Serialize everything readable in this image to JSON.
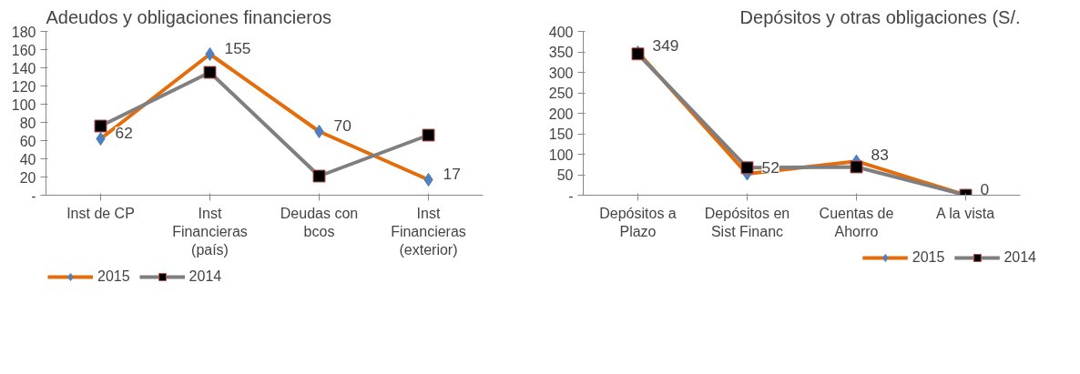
{
  "chart_data": [
    {
      "type": "line",
      "title": "Adeudos y obligaciones financieros",
      "categories": [
        "Inst de CP",
        "Inst Financieras (país)",
        "Deudas con bcos",
        "Inst Financieras (exterior)"
      ],
      "series": [
        {
          "name": "2015",
          "color": "#e46c0a",
          "marker": "diamond",
          "values": [
            62,
            155,
            70,
            17
          ],
          "value_labels": [
            "62",
            "155",
            "70",
            "17"
          ]
        },
        {
          "name": "2014",
          "color": "#7f7f7f",
          "marker": "square",
          "values": [
            76,
            135,
            21,
            66
          ]
        }
      ],
      "ylim": [
        0,
        180
      ],
      "yticks": [
        {
          "value": 0,
          "label": "-"
        },
        20,
        40,
        60,
        80,
        100,
        120,
        140,
        160,
        180
      ],
      "grid": false,
      "legend": "bottom left"
    },
    {
      "type": "line",
      "title": "Depósitos y otras obligaciones (S/.",
      "categories": [
        "Depósitos a Plazo",
        "Depósitos en Sist Financ",
        "Cuentas de Ahorro",
        "A la vista"
      ],
      "series": [
        {
          "name": "2015",
          "color": "#e46c0a",
          "marker": "diamond",
          "values": [
            349,
            52,
            83,
            0
          ],
          "value_labels": [
            "349",
            "52",
            "83",
            "0"
          ]
        },
        {
          "name": "2014",
          "color": "#7f7f7f",
          "marker": "square",
          "values": [
            345,
            67,
            69,
            0
          ]
        }
      ],
      "ylim": [
        0,
        400
      ],
      "yticks": [
        {
          "value": 0,
          "label": "-"
        },
        50,
        100,
        150,
        200,
        250,
        300,
        350,
        400
      ],
      "grid": false,
      "legend": "bottom right"
    }
  ]
}
